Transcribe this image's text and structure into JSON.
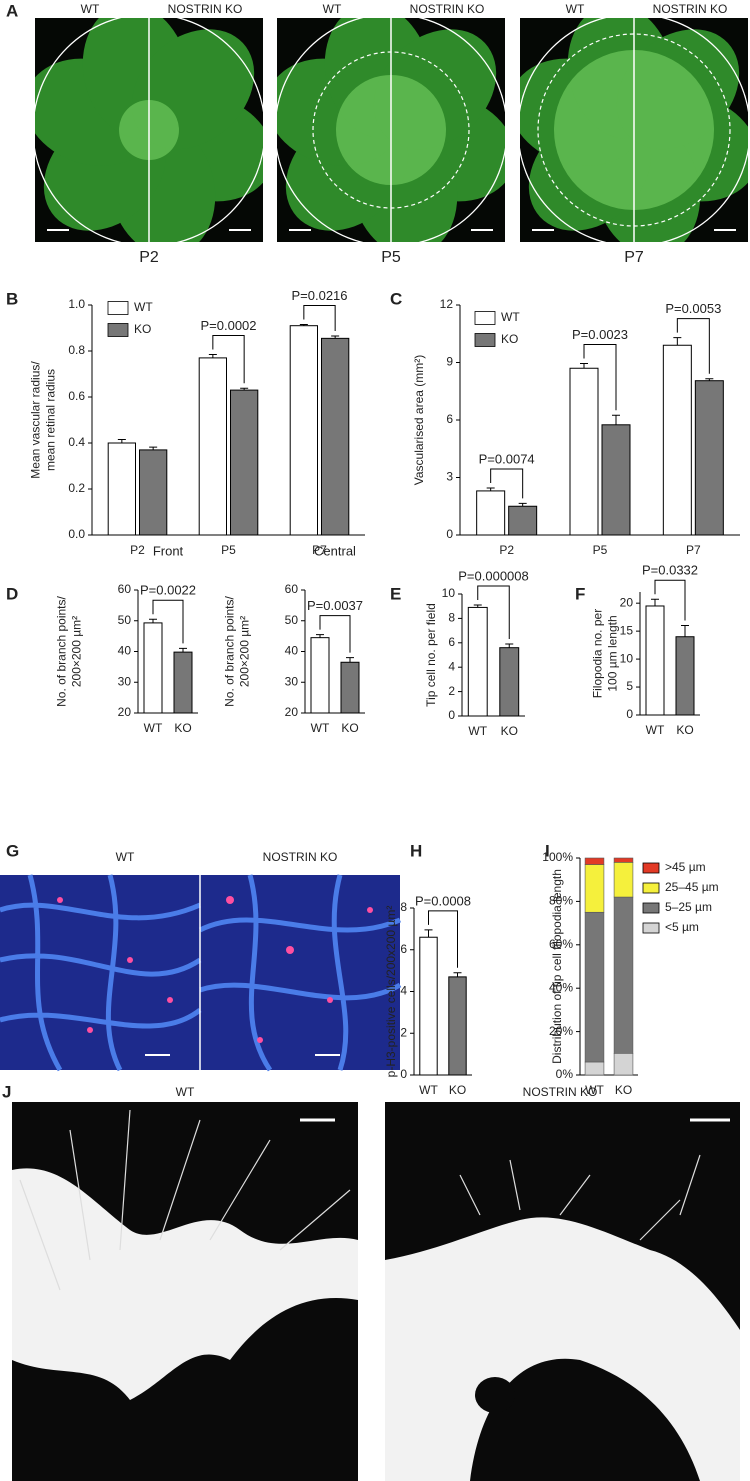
{
  "chart_data": [
    {
      "type": "bar",
      "panel": "B",
      "ylabel": [
        "Mean vascular radius/",
        "mean retinal radius"
      ],
      "categories": [
        "P2",
        "P5",
        "P7"
      ],
      "series": [
        {
          "name": "WT",
          "color": "#ffffff",
          "values": [
            0.4,
            0.77,
            0.91
          ],
          "errors": [
            0.015,
            0.015,
            0.005
          ]
        },
        {
          "name": "KO",
          "color": "#777777",
          "values": [
            0.37,
            0.63,
            0.855
          ],
          "errors": [
            0.012,
            0.008,
            0.01
          ]
        }
      ],
      "ylim": [
        0,
        1.0
      ],
      "yticks": [
        {
          "value": 0,
          "label": "0.0"
        },
        0.2,
        0.4,
        0.6,
        0.8,
        {
          "value": 1,
          "label": "1.0"
        }
      ],
      "annotations": [
        "P=0.0002",
        "P=0.0216"
      ]
    },
    {
      "type": "bar",
      "panel": "C",
      "ylabel": [
        "Vascularised area (mm²)"
      ],
      "categories": [
        "P2",
        "P5",
        "P7"
      ],
      "series": [
        {
          "name": "WT",
          "color": "#ffffff",
          "values": [
            2.3,
            8.7,
            9.9
          ],
          "errors": [
            0.15,
            0.25,
            0.4
          ]
        },
        {
          "name": "KO",
          "color": "#777777",
          "values": [
            1.5,
            5.75,
            8.05
          ],
          "errors": [
            0.15,
            0.5,
            0.1
          ]
        }
      ],
      "ylim": [
        0,
        12
      ],
      "yticks": [
        0,
        3,
        6,
        9,
        12
      ],
      "annotations": [
        "P=0.0074",
        "P=0.0023",
        "P=0.0053"
      ]
    },
    {
      "type": "bar",
      "panel": "D",
      "title": "Front",
      "ylabel": [
        "No. of branch points/",
        "200×200 µm²"
      ],
      "categories": [
        "WT",
        "KO"
      ],
      "values": [
        49.3,
        39.8
      ],
      "errors": [
        1.2,
        1.2
      ],
      "colors": [
        "#ffffff",
        "#777777"
      ],
      "ylim": [
        20,
        60
      ],
      "yticks": [
        20,
        30,
        40,
        50,
        60
      ],
      "annotations": [
        "P=0.0022"
      ]
    },
    {
      "type": "bar",
      "title": "Central",
      "ylabel": [
        "No. of branch points/",
        "200×200 µm²"
      ],
      "categories": [
        "WT",
        "KO"
      ],
      "values": [
        44.5,
        36.5
      ],
      "errors": [
        1.0,
        1.5
      ],
      "colors": [
        "#ffffff",
        "#777777"
      ],
      "ylim": [
        20,
        60
      ],
      "yticks": [
        20,
        30,
        40,
        50,
        60
      ],
      "annotations": [
        "P=0.0037"
      ]
    },
    {
      "type": "bar",
      "panel": "E",
      "ylabel": [
        "Tip cell no. per field"
      ],
      "categories": [
        "WT",
        "KO"
      ],
      "values": [
        8.9,
        5.6
      ],
      "errors": [
        0.2,
        0.3
      ],
      "colors": [
        "#ffffff",
        "#777777"
      ],
      "ylim": [
        0,
        10
      ],
      "yticks": [
        0,
        2,
        4,
        6,
        8,
        10
      ],
      "annotations": [
        "P=0.000008"
      ]
    },
    {
      "type": "bar",
      "panel": "F",
      "ylabel": [
        "Filopodia no. per",
        "100 µm length"
      ],
      "categories": [
        "WT",
        "KO"
      ],
      "values": [
        19.5,
        14.0
      ],
      "errors": [
        1.2,
        2.0
      ],
      "colors": [
        "#ffffff",
        "#777777"
      ],
      "ylim": [
        0,
        22
      ],
      "yticks": [
        0,
        5,
        10,
        15,
        20
      ],
      "annotations": [
        "P=0.0332"
      ]
    },
    {
      "type": "bar",
      "panel": "H",
      "ylabel": [
        "p-H3-positive cells/200x200 µm²"
      ],
      "categories": [
        "WT",
        "KO"
      ],
      "values": [
        6.6,
        4.7
      ],
      "errors": [
        0.35,
        0.2
      ],
      "colors": [
        "#ffffff",
        "#777777"
      ],
      "ylim": [
        0,
        8
      ],
      "yticks": [
        0,
        2,
        4,
        6,
        8
      ],
      "annotations": [
        "P=0.0008"
      ]
    },
    {
      "type": "bar",
      "panel": "I",
      "stacked": true,
      "ylabel": [
        "Distribution of tip cell filopodia length"
      ],
      "categories": [
        "WT",
        "KO"
      ],
      "series": [
        {
          "name": "<5 µm",
          "color": "#d4d4d4",
          "values": [
            6,
            10
          ]
        },
        {
          "name": "5–25 µm",
          "color": "#777777",
          "values": [
            69,
            72
          ]
        },
        {
          "name": "25–45 µm",
          "color": "#f5f03c",
          "values": [
            22,
            16
          ]
        },
        {
          "name": ">45 µm",
          "color": "#e23a26",
          "values": [
            3,
            2
          ]
        }
      ],
      "ylim": [
        0,
        100
      ],
      "yticks": [
        {
          "value": 0,
          "label": "0%"
        },
        {
          "value": 20,
          "label": "20%"
        },
        {
          "value": 40,
          "label": "40%"
        },
        {
          "value": 60,
          "label": "60%"
        },
        {
          "value": 80,
          "label": "80%"
        },
        {
          "value": 100,
          "label": "100%"
        }
      ]
    }
  ],
  "images": {
    "A": {
      "panel": "A",
      "items": [
        {
          "left": "WT",
          "right": "NOSTRIN KO",
          "caption": "P2"
        },
        {
          "left": "WT",
          "right": "NOSTRIN KO",
          "caption": "P5"
        },
        {
          "left": "WT",
          "right": "NOSTRIN KO",
          "caption": "P7"
        }
      ]
    },
    "G": {
      "panel": "G",
      "left": "WT",
      "right": "NOSTRIN KO"
    },
    "J": {
      "panel": "J",
      "left": "WT",
      "right": "NOSTRIN KO"
    }
  }
}
